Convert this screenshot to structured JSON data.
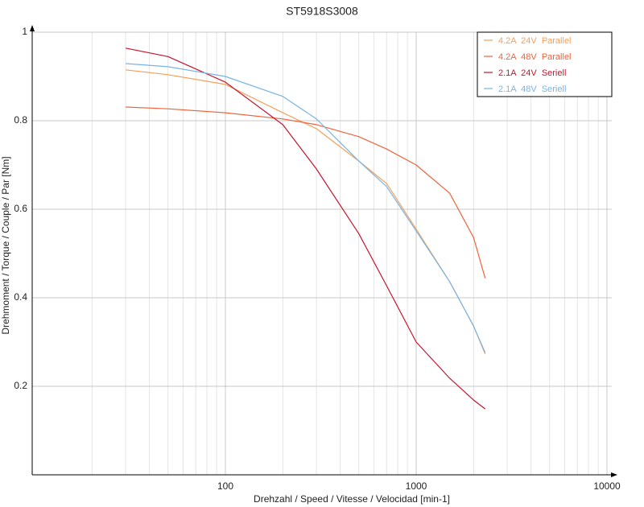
{
  "chart_data": {
    "type": "line",
    "title": "ST5918S3008",
    "x_label": "Drehzahl / Speed / Vitesse / Velocidad [min-1]",
    "y_label": "Drehmoment / Torque / Couple / Par [Nm]",
    "x_scale": "log",
    "grid": true,
    "legend": "top-right",
    "xlim": [
      10,
      10000
    ],
    "xticks": [
      100,
      1000,
      10000
    ],
    "xminorticks": [
      20,
      30,
      40,
      50,
      60,
      70,
      80,
      90,
      200,
      300,
      400,
      500,
      600,
      700,
      800,
      900,
      2000,
      3000,
      4000,
      5000,
      6000,
      7000,
      8000,
      9000
    ],
    "ylim": [
      0,
      1
    ],
    "yticks": [
      0.2,
      0.4,
      0.6,
      0.8,
      1
    ],
    "x": [
      30,
      50,
      100,
      200,
      300,
      500,
      700,
      1000,
      1500,
      2000,
      2300
    ],
    "series": [
      {
        "name": "4.2A  24V  Parallel",
        "color": "#f5a05a",
        "values": [
          0.915,
          0.904,
          0.882,
          0.818,
          0.782,
          0.709,
          0.658,
          0.555,
          0.436,
          0.336,
          0.273
        ]
      },
      {
        "name": "4.2A  48V  Parallel",
        "color": "#f0643c",
        "values": [
          0.831,
          0.827,
          0.818,
          0.804,
          0.791,
          0.764,
          0.736,
          0.7,
          0.636,
          0.536,
          0.444
        ]
      },
      {
        "name": "2.1A  24V  Seriell",
        "color": "#c8142d",
        "values": [
          0.964,
          0.945,
          0.887,
          0.791,
          0.691,
          0.545,
          0.427,
          0.3,
          0.218,
          0.169,
          0.149
        ]
      },
      {
        "name": "2.1A  48V  Seriell",
        "color": "#78b4e6",
        "values": [
          0.929,
          0.922,
          0.9,
          0.855,
          0.804,
          0.709,
          0.651,
          0.551,
          0.436,
          0.336,
          0.276
        ]
      }
    ]
  }
}
